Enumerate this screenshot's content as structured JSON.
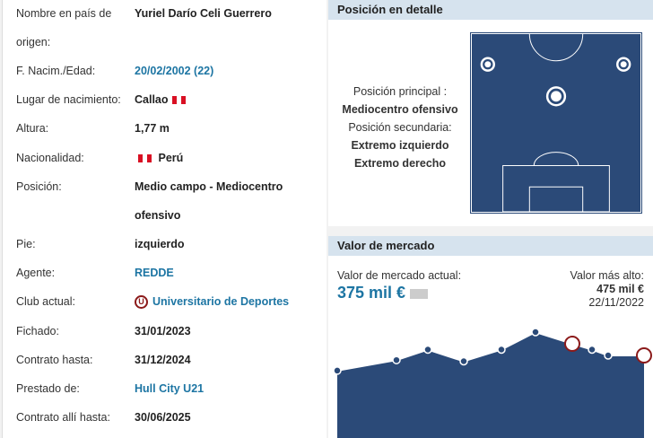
{
  "info": [
    {
      "label": "Nombre en país de",
      "label2": "origen:",
      "value": "Yuriel Darío Celi Guerrero"
    },
    {
      "label": "F. Nacim./Edad:",
      "value": "20/02/2002 (22)",
      "link": true
    },
    {
      "label": "Lugar de nacimiento:",
      "value": "Callao",
      "flag_after": true
    },
    {
      "label": "Altura:",
      "value": "1,77 m"
    },
    {
      "label": "Nacionalidad:",
      "value": "Perú",
      "flag_before": true
    },
    {
      "label": "Posición:",
      "value": "Medio campo - Mediocentro",
      "value2": "ofensivo"
    },
    {
      "label": "Pie:",
      "value": "izquierdo"
    },
    {
      "label": "Agente:",
      "value": "REDDE",
      "link": true
    },
    {
      "label": "Club actual:",
      "value": "Universitario de Deportes",
      "link": true,
      "club_logo": true
    },
    {
      "label": "Fichado:",
      "value": "31/01/2023"
    },
    {
      "label": "Contrato hasta:",
      "value": "31/12/2024"
    },
    {
      "label": "Prestado de:",
      "value": "Hull City U21",
      "link": true
    },
    {
      "label": "Contrato allí hasta:",
      "value": "30/06/2025"
    }
  ],
  "position": {
    "title": "Posición en detalle",
    "main_label": "Posición principal :",
    "main": "Mediocentro ofensivo",
    "secondary_label": "Posición secundaria:",
    "secondary": [
      "Extremo izquierdo",
      "Extremo derecho"
    ]
  },
  "market": {
    "title": "Valor de mercado",
    "current_label": "Valor de mercado actual:",
    "current": "375 mil €",
    "highest_label": "Valor más alto:",
    "highest": "475 mil €",
    "highest_date": "22/11/2022"
  },
  "chart_data": {
    "type": "area",
    "values": [
      310,
      355,
      400,
      350,
      400,
      475,
      425,
      400,
      375,
      375
    ],
    "color": "#2b4a78"
  },
  "colors": {
    "link": "#1d75a3",
    "pitch": "#2b4a78",
    "header": "#d6e3ee"
  }
}
